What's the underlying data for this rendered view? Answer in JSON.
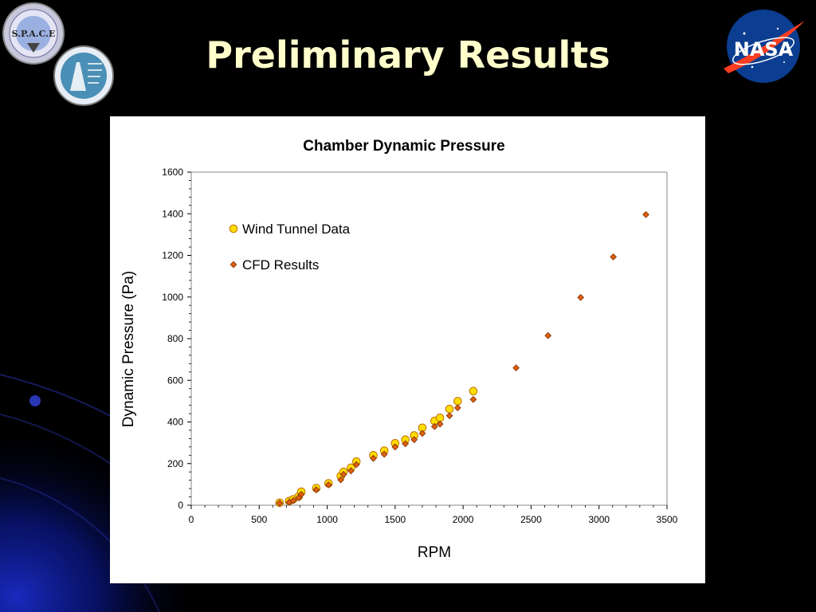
{
  "slide": {
    "title": "Preliminary Results"
  },
  "logos": {
    "space_badge_text": "S.P.A.C.E",
    "nasa_text": "NASA"
  },
  "colors": {
    "title": "#ffffcc",
    "wind_tunnel_fill": "#ffdd00",
    "wind_tunnel_stroke": "#c07000",
    "cfd_fill": "#e06010",
    "cfd_stroke": "#7a3000",
    "nasa_blue": "#0b3d91",
    "nasa_red": "#fc3d21"
  },
  "chart_data": {
    "type": "scatter",
    "title": "Chamber Dynamic Pressure",
    "xlabel": "RPM",
    "ylabel": "Dynamic Pressure (Pa)",
    "xlim": [
      0,
      3500
    ],
    "ylim": [
      0,
      1600
    ],
    "xticks": [
      0,
      500,
      1000,
      1500,
      2000,
      2500,
      3000,
      3500
    ],
    "yticks": [
      0,
      200,
      400,
      600,
      800,
      1000,
      1200,
      1400,
      1600
    ],
    "grid": false,
    "legend_position": "top-left",
    "series": [
      {
        "name": "Wind Tunnel Data",
        "marker": "circle",
        "points": [
          [
            650,
            12
          ],
          [
            720,
            20
          ],
          [
            750,
            28
          ],
          [
            790,
            42
          ],
          [
            810,
            65
          ],
          [
            920,
            82
          ],
          [
            1010,
            105
          ],
          [
            1100,
            140
          ],
          [
            1120,
            160
          ],
          [
            1175,
            180
          ],
          [
            1215,
            210
          ],
          [
            1340,
            240
          ],
          [
            1420,
            262
          ],
          [
            1500,
            298
          ],
          [
            1575,
            315
          ],
          [
            1640,
            335
          ],
          [
            1700,
            372
          ],
          [
            1790,
            405
          ],
          [
            1830,
            420
          ],
          [
            1900,
            462
          ],
          [
            1960,
            500
          ],
          [
            2075,
            548
          ]
        ]
      },
      {
        "name": "CFD Results",
        "marker": "diamond",
        "points": [
          [
            650,
            10
          ],
          [
            720,
            14
          ],
          [
            750,
            22
          ],
          [
            790,
            36
          ],
          [
            810,
            52
          ],
          [
            920,
            74
          ],
          [
            1010,
            98
          ],
          [
            1100,
            122
          ],
          [
            1120,
            148
          ],
          [
            1175,
            165
          ],
          [
            1215,
            195
          ],
          [
            1340,
            225
          ],
          [
            1420,
            245
          ],
          [
            1500,
            280
          ],
          [
            1575,
            295
          ],
          [
            1640,
            315
          ],
          [
            1700,
            345
          ],
          [
            1790,
            378
          ],
          [
            1830,
            390
          ],
          [
            1900,
            430
          ],
          [
            1960,
            468
          ],
          [
            2075,
            508
          ],
          [
            2390,
            660
          ],
          [
            2625,
            815
          ],
          [
            2865,
            998
          ],
          [
            3105,
            1193
          ],
          [
            3345,
            1396
          ]
        ]
      }
    ]
  }
}
